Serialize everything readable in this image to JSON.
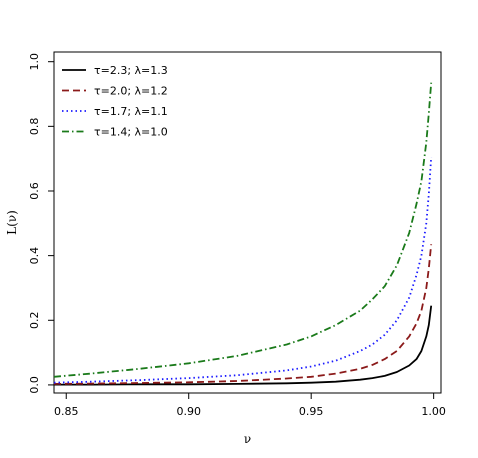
{
  "chart_data": {
    "type": "line",
    "title": "",
    "xlabel": "ν",
    "ylabel": "L(ν)",
    "xlim": [
      0.845,
      1.003
    ],
    "ylim": [
      -0.025,
      1.03
    ],
    "xticks": [
      0.85,
      0.9,
      0.95,
      1.0
    ],
    "xtick_labels": [
      "0.85",
      "0.90",
      "0.95",
      "1.00"
    ],
    "yticks": [
      0.0,
      0.2,
      0.4,
      0.6,
      0.8,
      1.0
    ],
    "ytick_labels": [
      "0.0",
      "0.2",
      "0.4",
      "0.6",
      "0.8",
      "1.0"
    ],
    "grid": false,
    "legend_position": "top-left",
    "series": [
      {
        "name": "τ=2.3; λ=1.3",
        "color": "#000000",
        "dash": "solid",
        "x": [
          0.845,
          0.86,
          0.88,
          0.9,
          0.92,
          0.94,
          0.95,
          0.96,
          0.97,
          0.975,
          0.98,
          0.985,
          0.99,
          0.993,
          0.995,
          0.997,
          0.998,
          0.999
        ],
        "y": [
          0.001,
          0.001,
          0.002,
          0.002,
          0.003,
          0.005,
          0.007,
          0.01,
          0.016,
          0.021,
          0.028,
          0.04,
          0.06,
          0.08,
          0.105,
          0.15,
          0.185,
          0.245
        ]
      },
      {
        "name": "τ=2.0; λ=1.2",
        "color": "#8b1a1a",
        "dash": "dashed",
        "x": [
          0.845,
          0.86,
          0.88,
          0.9,
          0.92,
          0.94,
          0.95,
          0.96,
          0.97,
          0.975,
          0.98,
          0.985,
          0.99,
          0.993,
          0.995,
          0.997,
          0.998,
          0.999
        ],
        "y": [
          0.003,
          0.004,
          0.006,
          0.008,
          0.012,
          0.02,
          0.025,
          0.035,
          0.05,
          0.062,
          0.08,
          0.105,
          0.15,
          0.19,
          0.23,
          0.3,
          0.36,
          0.435
        ]
      },
      {
        "name": "τ=1.7; λ=1.1",
        "color": "#1a1aff",
        "dash": "dotted",
        "x": [
          0.845,
          0.86,
          0.88,
          0.9,
          0.92,
          0.94,
          0.95,
          0.96,
          0.97,
          0.975,
          0.98,
          0.985,
          0.99,
          0.993,
          0.995,
          0.997,
          0.998,
          0.999
        ],
        "y": [
          0.007,
          0.01,
          0.015,
          0.021,
          0.03,
          0.045,
          0.057,
          0.075,
          0.105,
          0.125,
          0.155,
          0.2,
          0.27,
          0.34,
          0.4,
          0.5,
          0.59,
          0.705
        ]
      },
      {
        "name": "τ=1.4; λ=1.0",
        "color": "#1a7a1a",
        "dash": "dashdot",
        "x": [
          0.845,
          0.86,
          0.88,
          0.9,
          0.92,
          0.94,
          0.95,
          0.96,
          0.97,
          0.975,
          0.98,
          0.985,
          0.99,
          0.993,
          0.995,
          0.997,
          0.998,
          0.999
        ],
        "y": [
          0.025,
          0.035,
          0.05,
          0.067,
          0.09,
          0.125,
          0.15,
          0.185,
          0.23,
          0.265,
          0.305,
          0.37,
          0.47,
          0.56,
          0.63,
          0.75,
          0.84,
          0.935
        ]
      }
    ]
  }
}
